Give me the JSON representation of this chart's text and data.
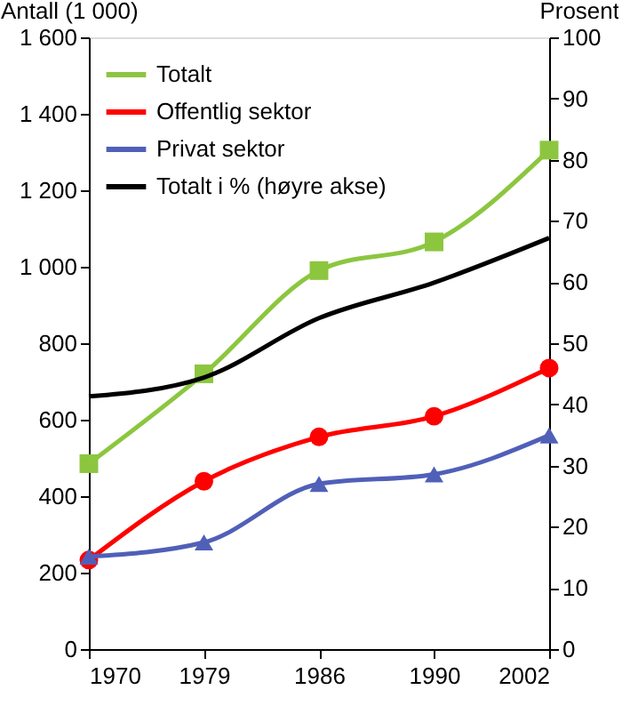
{
  "chart_data": {
    "type": "line",
    "ylabel": "Antall (1 000)",
    "y2label": "Prosent",
    "categories": [
      "1970",
      "1979",
      "1986",
      "1990",
      "2002"
    ],
    "series": [
      {
        "name": "Totalt",
        "color": "#8cc63f",
        "marker": "square",
        "values": [
          485,
          720,
          990,
          1065,
          1305
        ]
      },
      {
        "name": "Offentlig sektor",
        "color": "#ff0000",
        "marker": "circle",
        "values": [
          233,
          439,
          555,
          609,
          735
        ]
      },
      {
        "name": "Privat sektor",
        "color": "#5060b8",
        "marker": "triangle",
        "values": [
          242,
          279,
          432,
          457,
          559
        ]
      },
      {
        "name": "Totalt i % (høyre akse)",
        "color": "#000000",
        "marker": "none",
        "axis": "y2",
        "values": [
          41.3,
          44.4,
          54.1,
          59.9,
          67.2
        ]
      }
    ],
    "ylim": [
      0,
      1600
    ],
    "yticks": [
      0,
      200,
      400,
      600,
      800,
      1000,
      1200,
      1400,
      1600
    ],
    "y2lim": [
      0,
      100
    ],
    "y2ticks": [
      0,
      10,
      20,
      30,
      40,
      50,
      60,
      70,
      80,
      90,
      100
    ],
    "legend": "top left",
    "grid": false,
    "line_style": "solid"
  }
}
